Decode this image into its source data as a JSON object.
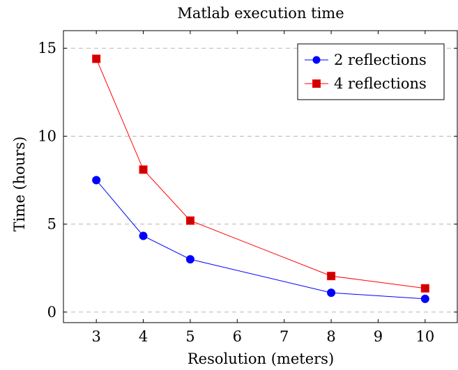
{
  "chart_data": {
    "type": "line",
    "title": "Matlab execution time",
    "xlabel": "Resolution (meters)",
    "ylabel": "Time (hours)",
    "xlim": [
      2.3,
      10.7
    ],
    "ylim": [
      -0.6,
      16.0
    ],
    "xticks": [
      3,
      4,
      5,
      6,
      7,
      8,
      9,
      10
    ],
    "yticks": [
      0,
      5,
      10,
      15
    ],
    "grid": "y-major-dashed",
    "legend_position": "top-right",
    "series": [
      {
        "name": "2 reflections",
        "color": "#0000ff",
        "marker": "circle",
        "x": [
          3,
          4,
          5,
          8,
          10
        ],
        "y": [
          7.5,
          4.33,
          3.0,
          1.1,
          0.75
        ]
      },
      {
        "name": "4 reflections",
        "color": "#ff0000",
        "marker_fill": "#cc0000",
        "marker": "square",
        "x": [
          3,
          4,
          5,
          8,
          10
        ],
        "y": [
          14.4,
          8.1,
          5.2,
          2.05,
          1.35
        ]
      }
    ]
  }
}
